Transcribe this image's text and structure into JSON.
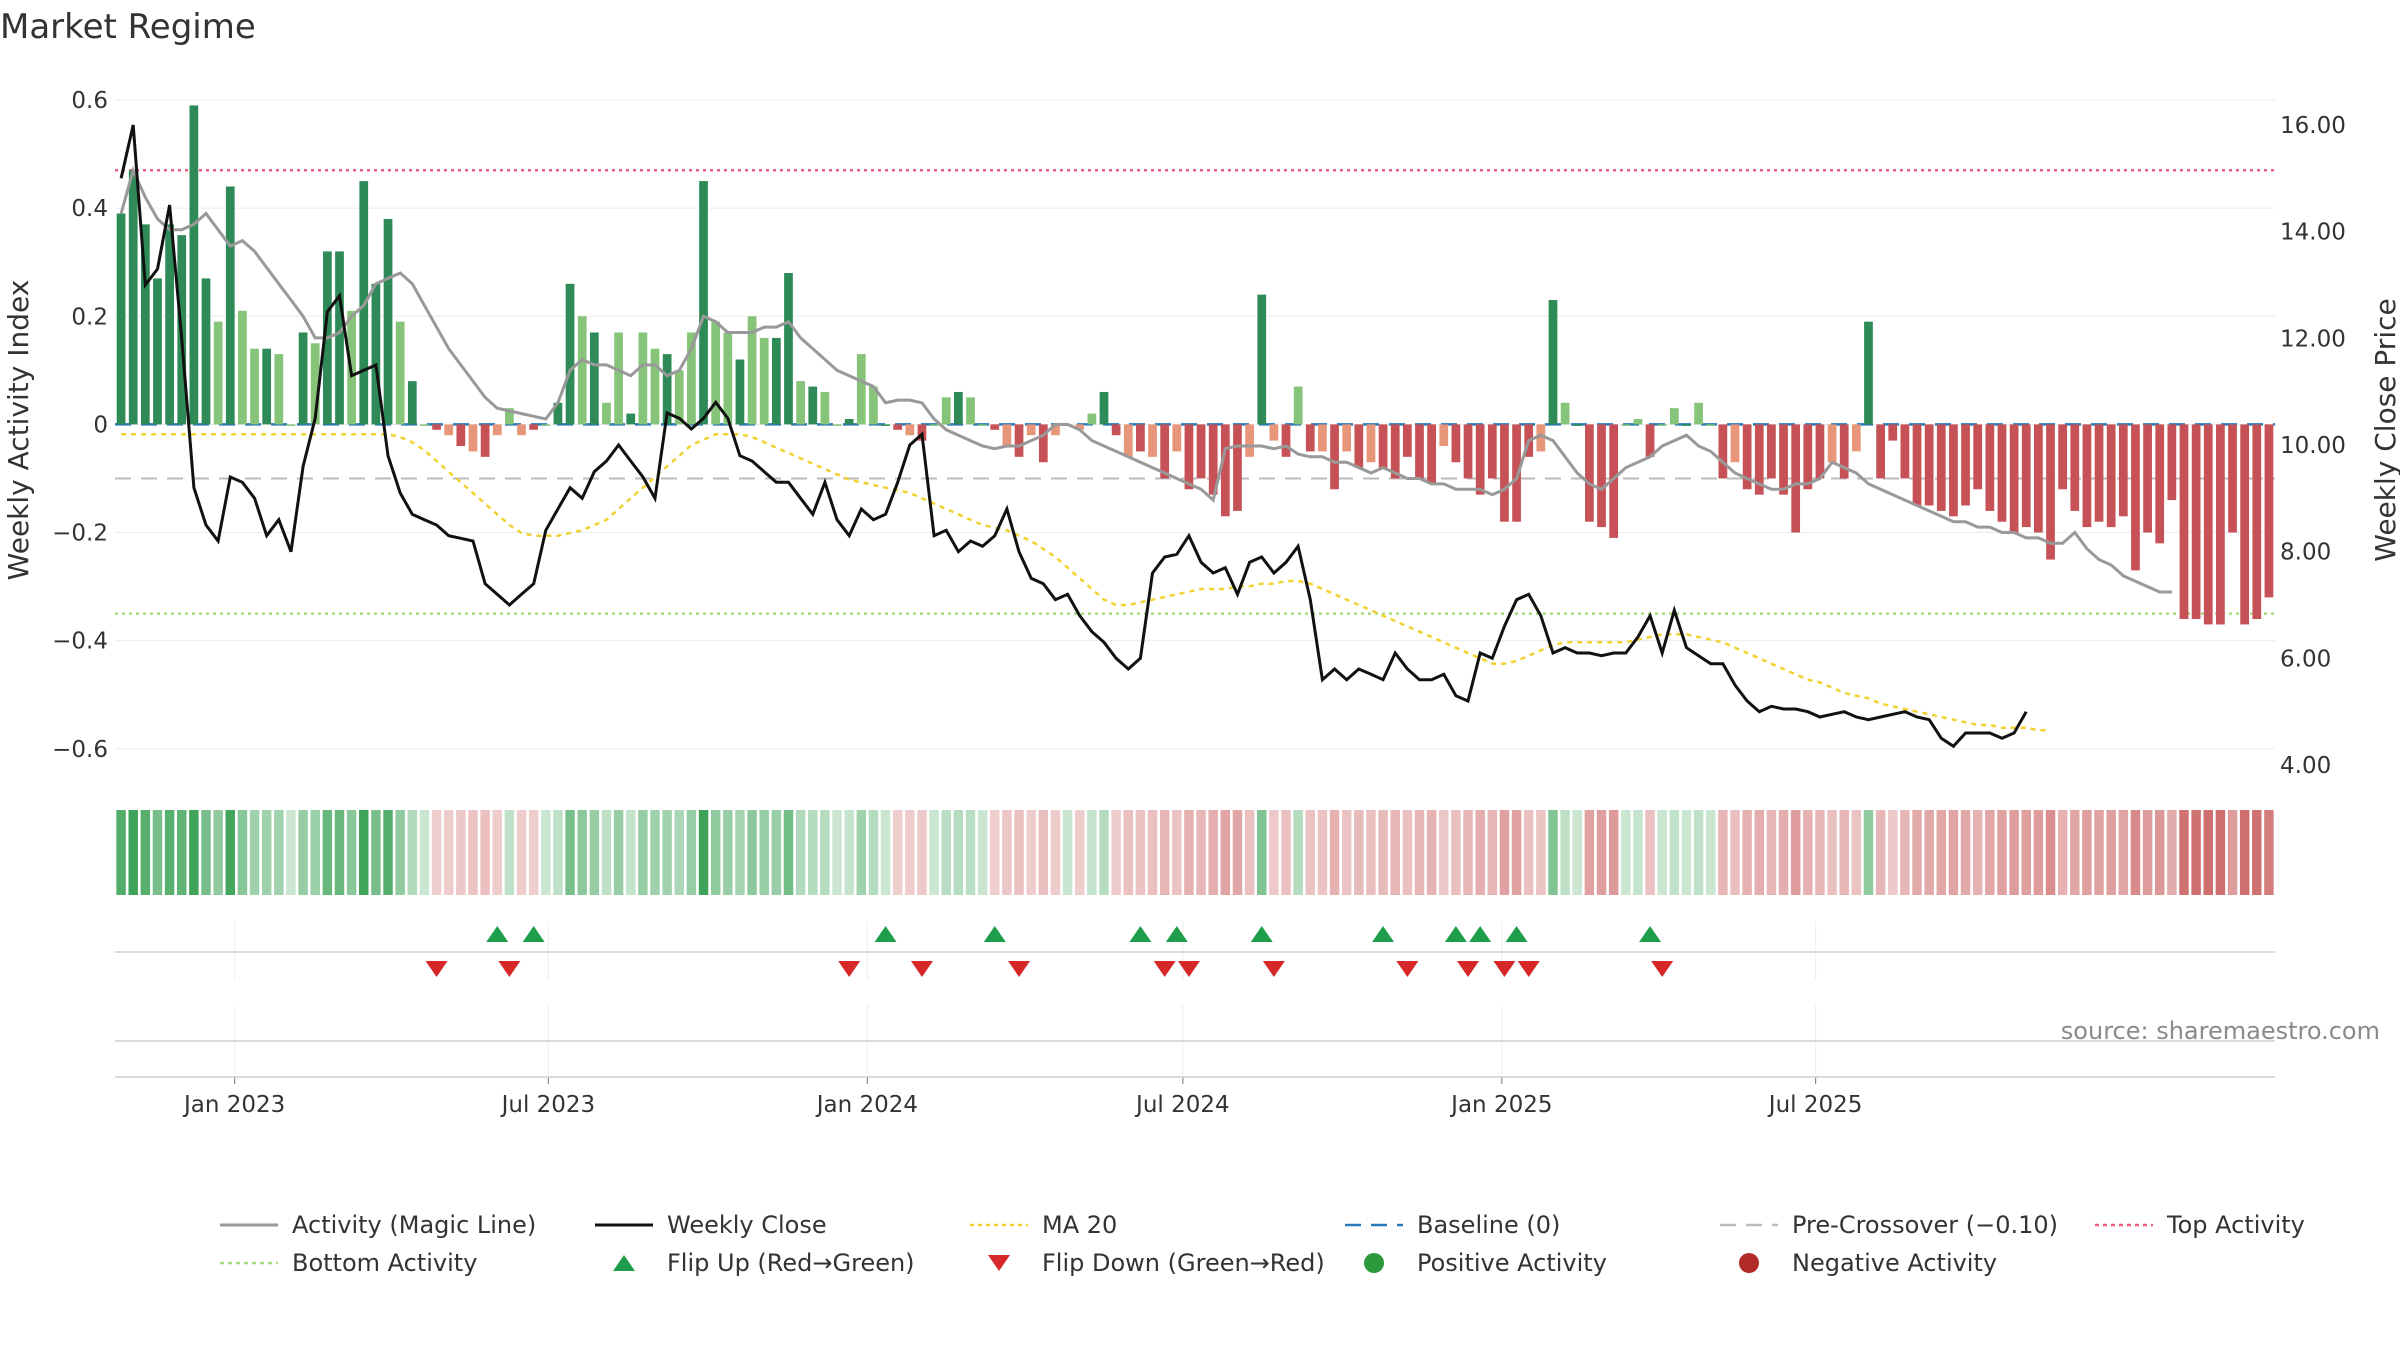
{
  "chart_data": {
    "type": "bar",
    "title": "Market Regime",
    "source": "source: sharemaestro.com",
    "ylabel_left": "Weekly Activity Index",
    "ylabel_right": "Weekly Close Price",
    "ylim_left": [
      -0.63,
      0.6
    ],
    "ylim_right": [
      4.0,
      16.0
    ],
    "yticks_left": [
      {
        "v": 0.6,
        "label": "0.6"
      },
      {
        "v": 0.4,
        "label": "0.4"
      },
      {
        "v": 0.2,
        "label": "0.2"
      },
      {
        "v": 0,
        "label": "0"
      },
      {
        "v": -0.2,
        "label": "−0.2"
      },
      {
        "v": -0.4,
        "label": "−0.4"
      },
      {
        "v": -0.6,
        "label": "−0.6"
      }
    ],
    "yticks_right": [
      {
        "v": 16,
        "label": "16.00"
      },
      {
        "v": 14,
        "label": "14.00"
      },
      {
        "v": 12,
        "label": "12.00"
      },
      {
        "v": 10,
        "label": "10.00"
      },
      {
        "v": 8,
        "label": "8.00"
      },
      {
        "v": 6,
        "label": "6.00"
      },
      {
        "v": 4,
        "label": "4.00"
      }
    ],
    "x_start": "2022-10-24",
    "xticks": [
      {
        "date": "2023-01-01",
        "label": "Jan 2023"
      },
      {
        "date": "2023-07-01",
        "label": "Jul 2023"
      },
      {
        "date": "2024-01-01",
        "label": "Jan 2024"
      },
      {
        "date": "2024-07-01",
        "label": "Jul 2024"
      },
      {
        "date": "2025-01-01",
        "label": "Jan 2025"
      },
      {
        "date": "2025-07-01",
        "label": "Jul 2025"
      }
    ],
    "reference_lines": {
      "top_activity": 0.47,
      "bottom_activity": -0.35,
      "pre_crossover": -0.1,
      "baseline": 0
    },
    "colors": {
      "strong_pos": "#2e8b57",
      "weak_pos": "#86c47a",
      "strong_neg": "#c65257",
      "weak_neg": "#e8967a",
      "activity_line": "#999999",
      "close_line": "#111111",
      "ma20": "#f2d22e",
      "baseline": "#2a7ab8",
      "pre_crossover": "#bbbbbb",
      "top_activity": "#e8607e",
      "bottom_activity": "#a8dc7c",
      "flip_up": "#1e9e4a",
      "flip_down": "#d62828",
      "positive_dot": "#2a9a3c",
      "negative_dot": "#b22a2a"
    },
    "activity": [
      0.39,
      0.47,
      0.37,
      0.27,
      0.37,
      0.35,
      0.59,
      0.27,
      0.19,
      0.44,
      0.21,
      0.14,
      0.14,
      0.13,
      0.0,
      0.17,
      0.15,
      0.32,
      0.32,
      0.21,
      0.45,
      0.26,
      0.38,
      0.19,
      0.08,
      0.0,
      -0.01,
      -0.02,
      -0.04,
      -0.05,
      -0.06,
      -0.02,
      0.03,
      -0.02,
      -0.01,
      0.0,
      0.04,
      0.26,
      0.2,
      0.17,
      0.04,
      0.17,
      0.02,
      0.17,
      0.14,
      0.13,
      0.1,
      0.17,
      0.45,
      0.19,
      0.17,
      0.12,
      0.2,
      0.16,
      0.16,
      0.28,
      0.08,
      0.07,
      0.06,
      0.0,
      0.01,
      0.13,
      0.07,
      0.0,
      -0.01,
      -0.02,
      -0.03,
      0.0,
      0.05,
      0.06,
      0.05,
      0.0,
      -0.01,
      -0.04,
      -0.06,
      -0.02,
      -0.07,
      -0.02,
      0.0,
      -0.01,
      0.02,
      0.06,
      -0.02,
      -0.06,
      -0.05,
      -0.06,
      -0.1,
      -0.05,
      -0.12,
      -0.1,
      -0.13,
      -0.17,
      -0.16,
      -0.06,
      0.24,
      -0.03,
      -0.06,
      0.07,
      -0.05,
      -0.05,
      -0.12,
      -0.05,
      -0.08,
      -0.07,
      -0.08,
      -0.1,
      -0.06,
      -0.1,
      -0.11,
      -0.04,
      -0.07,
      -0.1,
      -0.13,
      -0.1,
      -0.18,
      -0.18,
      -0.06,
      -0.05,
      0.23,
      0.04,
      0.0,
      -0.18,
      -0.19,
      -0.21,
      0.0,
      0.01,
      -0.06,
      0.0,
      0.03,
      0.0,
      0.04,
      0.0,
      -0.1,
      -0.07,
      -0.12,
      -0.13,
      -0.1,
      -0.13,
      -0.2,
      -0.12,
      -0.1,
      -0.07,
      -0.1,
      -0.05,
      0.19,
      -0.1,
      -0.03,
      -0.1,
      -0.15,
      -0.15,
      -0.16,
      -0.17,
      -0.15,
      -0.12,
      -0.16,
      -0.18,
      -0.2,
      -0.19,
      -0.2,
      -0.25,
      -0.12,
      -0.16,
      -0.19,
      -0.18,
      -0.19,
      -0.17,
      -0.27,
      -0.2,
      -0.22,
      -0.14,
      -0.36,
      -0.36,
      -0.37,
      -0.37,
      -0.2,
      -0.37,
      -0.36,
      -0.32
    ],
    "activity_line": [
      0.39,
      0.47,
      0.42,
      0.38,
      0.36,
      0.36,
      0.37,
      0.39,
      0.36,
      0.33,
      0.34,
      0.32,
      0.29,
      0.26,
      0.23,
      0.2,
      0.16,
      0.16,
      0.17,
      0.2,
      0.22,
      0.26,
      0.27,
      0.28,
      0.26,
      0.22,
      0.18,
      0.14,
      0.11,
      0.08,
      0.05,
      0.03,
      0.025,
      0.02,
      0.015,
      0.01,
      0.04,
      0.1,
      0.12,
      0.11,
      0.11,
      0.1,
      0.09,
      0.11,
      0.11,
      0.09,
      0.1,
      0.14,
      0.2,
      0.19,
      0.17,
      0.17,
      0.17,
      0.18,
      0.18,
      0.19,
      0.16,
      0.14,
      0.12,
      0.1,
      0.09,
      0.08,
      0.07,
      0.04,
      0.045,
      0.045,
      0.04,
      0.01,
      -0.01,
      -0.02,
      -0.03,
      -0.04,
      -0.045,
      -0.04,
      -0.04,
      -0.03,
      -0.02,
      0.0,
      0.0,
      -0.01,
      -0.03,
      -0.04,
      -0.05,
      -0.06,
      -0.07,
      -0.08,
      -0.09,
      -0.1,
      -0.11,
      -0.12,
      -0.14,
      -0.045,
      -0.04,
      -0.04,
      -0.04,
      -0.045,
      -0.04,
      -0.055,
      -0.06,
      -0.06,
      -0.07,
      -0.07,
      -0.08,
      -0.09,
      -0.08,
      -0.09,
      -0.1,
      -0.1,
      -0.11,
      -0.11,
      -0.12,
      -0.12,
      -0.12,
      -0.13,
      -0.12,
      -0.1,
      -0.03,
      -0.02,
      -0.03,
      -0.06,
      -0.09,
      -0.11,
      -0.12,
      -0.1,
      -0.08,
      -0.07,
      -0.06,
      -0.04,
      -0.03,
      -0.02,
      -0.04,
      -0.05,
      -0.07,
      -0.09,
      -0.1,
      -0.11,
      -0.12,
      -0.12,
      -0.11,
      -0.11,
      -0.1,
      -0.07,
      -0.08,
      -0.09,
      -0.11,
      -0.12,
      -0.13,
      -0.14,
      -0.15,
      -0.16,
      -0.17,
      -0.18,
      -0.18,
      -0.19,
      -0.19,
      -0.2,
      -0.2,
      -0.21,
      -0.21,
      -0.22,
      -0.22,
      -0.2,
      -0.23,
      -0.25,
      -0.26,
      -0.28,
      -0.29,
      -0.3,
      -0.31,
      -0.31
    ],
    "close": [
      15.0,
      16.0,
      13.0,
      13.3,
      14.5,
      12.0,
      9.2,
      8.5,
      8.2,
      9.4,
      9.3,
      9.0,
      8.3,
      8.6,
      8.0,
      9.6,
      10.5,
      12.5,
      12.8,
      11.3,
      11.4,
      11.5,
      9.8,
      9.1,
      8.7,
      8.6,
      8.5,
      8.3,
      8.25,
      8.2,
      7.4,
      7.2,
      7.0,
      7.2,
      7.4,
      8.4,
      8.8,
      9.2,
      9.0,
      9.5,
      9.7,
      10.0,
      9.7,
      9.4,
      9.0,
      10.6,
      10.5,
      10.3,
      10.5,
      10.8,
      10.5,
      9.8,
      9.7,
      9.5,
      9.3,
      9.3,
      9.0,
      8.7,
      9.3,
      8.6,
      8.3,
      8.8,
      8.6,
      8.7,
      9.3,
      10.0,
      10.2,
      8.3,
      8.4,
      8.0,
      8.2,
      8.1,
      8.3,
      8.8,
      8.0,
      7.5,
      7.4,
      7.1,
      7.2,
      6.8,
      6.5,
      6.3,
      6.0,
      5.8,
      6.0,
      7.6,
      7.9,
      7.95,
      8.3,
      7.8,
      7.6,
      7.7,
      7.2,
      7.8,
      7.9,
      7.6,
      7.8,
      8.1,
      7.1,
      5.6,
      5.8,
      5.6,
      5.8,
      5.7,
      5.6,
      6.1,
      5.8,
      5.6,
      5.6,
      5.7,
      5.3,
      5.2,
      6.1,
      6.0,
      6.6,
      7.1,
      7.2,
      6.8,
      6.1,
      6.2,
      6.1,
      6.1,
      6.05,
      6.1,
      6.1,
      6.4,
      6.8,
      6.1,
      6.9,
      6.2,
      6.05,
      5.9,
      5.9,
      5.5,
      5.2,
      5.0,
      5.1,
      5.05,
      5.05,
      5.0,
      4.9,
      4.95,
      5.0,
      4.9,
      4.85,
      4.9,
      4.95,
      5.0,
      4.9,
      4.85,
      4.5,
      4.35,
      4.6,
      4.6,
      4.6,
      4.5,
      4.6,
      5.0
    ],
    "ma20": [
      10.2,
      10.2,
      10.2,
      10.2,
      10.2,
      10.2,
      10.2,
      10.2,
      10.2,
      10.2,
      10.2,
      10.2,
      10.2,
      10.2,
      10.2,
      10.2,
      10.2,
      10.2,
      10.2,
      10.2,
      10.2,
      10.2,
      10.2,
      10.15,
      10.05,
      9.9,
      9.7,
      9.5,
      9.3,
      9.1,
      8.9,
      8.7,
      8.5,
      8.35,
      8.3,
      8.3,
      8.3,
      8.35,
      8.4,
      8.5,
      8.6,
      8.8,
      9.0,
      9.2,
      9.4,
      9.6,
      9.8,
      10.0,
      10.1,
      10.2,
      10.2,
      10.2,
      10.15,
      10.05,
      9.95,
      9.85,
      9.75,
      9.65,
      9.55,
      9.45,
      9.35,
      9.3,
      9.25,
      9.2,
      9.15,
      9.1,
      9.0,
      8.9,
      8.8,
      8.7,
      8.6,
      8.5,
      8.45,
      8.4,
      8.3,
      8.2,
      8.05,
      7.9,
      7.7,
      7.5,
      7.3,
      7.1,
      7.0,
      7.0,
      7.05,
      7.1,
      7.15,
      7.2,
      7.25,
      7.3,
      7.3,
      7.3,
      7.35,
      7.35,
      7.4,
      7.4,
      7.45,
      7.45,
      7.4,
      7.3,
      7.2,
      7.1,
      7.0,
      6.9,
      6.8,
      6.7,
      6.6,
      6.5,
      6.4,
      6.3,
      6.2,
      6.1,
      6.0,
      5.9,
      5.9,
      5.95,
      6.05,
      6.15,
      6.25,
      6.3,
      6.3,
      6.3,
      6.3,
      6.3,
      6.3,
      6.35,
      6.4,
      6.45,
      6.45,
      6.45,
      6.4,
      6.35,
      6.3,
      6.2,
      6.1,
      6.0,
      5.9,
      5.8,
      5.7,
      5.6,
      5.55,
      5.45,
      5.35,
      5.3,
      5.25,
      5.15,
      5.1,
      5.05,
      5.0,
      4.95,
      4.9,
      4.85,
      4.8,
      4.75,
      4.75,
      4.7,
      4.7,
      4.7,
      4.65,
      4.65
    ],
    "flip_up_idx": [
      31,
      34,
      63,
      72,
      84,
      87,
      94,
      104,
      110,
      112,
      115,
      126
    ],
    "flip_down_idx": [
      26,
      32,
      60,
      66,
      74,
      86,
      88,
      95,
      106,
      111,
      114,
      116,
      127
    ],
    "legend": [
      {
        "key": "activity_line",
        "label": "Activity (Magic Line)",
        "kind": "line"
      },
      {
        "key": "close_line",
        "label": "Weekly Close",
        "kind": "line"
      },
      {
        "key": "ma20",
        "label": "MA 20",
        "kind": "dotted"
      },
      {
        "key": "baseline",
        "label": "Baseline (0)",
        "kind": "dashed"
      },
      {
        "key": "pre_crossover",
        "label": "Pre-Crossover (−0.10)",
        "kind": "dashed"
      },
      {
        "key": "top_activity",
        "label": "Top Activity",
        "kind": "dotted"
      },
      {
        "key": "bottom_activity",
        "label": "Bottom Activity",
        "kind": "dotted"
      },
      {
        "key": "flip_up",
        "label": "Flip Up (Red→Green)",
        "kind": "up"
      },
      {
        "key": "flip_down",
        "label": "Flip Down (Green→Red)",
        "kind": "down"
      },
      {
        "key": "positive_dot",
        "label": "Positive Activity",
        "kind": "dot"
      },
      {
        "key": "negative_dot",
        "label": "Negative Activity",
        "kind": "dot"
      }
    ]
  }
}
